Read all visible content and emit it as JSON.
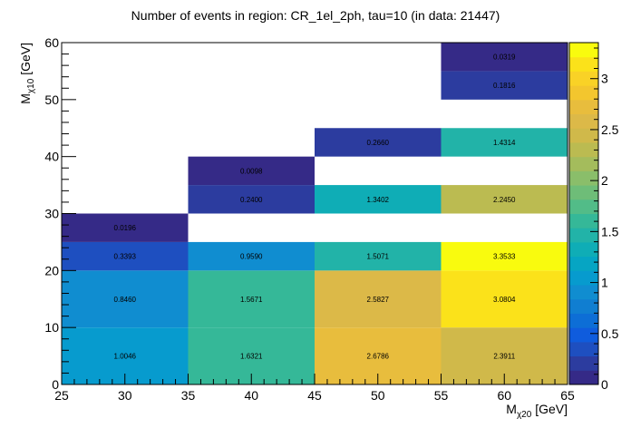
{
  "chart_data": {
    "type": "heatmap",
    "title": "Number of events in region: CR_1el_2ph, tau=10 (in data: 21447)",
    "xlabel": {
      "base": "M",
      "sub": "χ20",
      "unit": " [GeV]"
    },
    "ylabel": {
      "base": "M",
      "sub": "χ10",
      "unit": " [GeV]"
    },
    "xlim": [
      25,
      65
    ],
    "ylim": [
      0,
      60
    ],
    "xticks": [
      25,
      30,
      35,
      40,
      45,
      50,
      55,
      60,
      65
    ],
    "yticks": [
      0,
      10,
      20,
      30,
      40,
      50,
      60
    ],
    "zlim": [
      0,
      3.3533
    ],
    "zticks": [
      0,
      0.5,
      1,
      1.5,
      2,
      2.5,
      3
    ],
    "cells": [
      {
        "x": [
          25,
          35
        ],
        "y": [
          0,
          10
        ],
        "value": 1.0046,
        "label": "1.0046"
      },
      {
        "x": [
          35,
          45
        ],
        "y": [
          0,
          10
        ],
        "value": 1.6321,
        "label": "1.6321"
      },
      {
        "x": [
          45,
          55
        ],
        "y": [
          0,
          10
        ],
        "value": 2.6786,
        "label": "2.6786"
      },
      {
        "x": [
          55,
          65
        ],
        "y": [
          0,
          10
        ],
        "value": 2.3911,
        "label": "2.3911"
      },
      {
        "x": [
          25,
          35
        ],
        "y": [
          10,
          20
        ],
        "value": 0.846,
        "label": "0.8460"
      },
      {
        "x": [
          35,
          45
        ],
        "y": [
          10,
          20
        ],
        "value": 1.5671,
        "label": "1.5671"
      },
      {
        "x": [
          45,
          55
        ],
        "y": [
          10,
          20
        ],
        "value": 2.5827,
        "label": "2.5827"
      },
      {
        "x": [
          55,
          65
        ],
        "y": [
          10,
          20
        ],
        "value": 3.0804,
        "label": "3.0804"
      },
      {
        "x": [
          25,
          35
        ],
        "y": [
          20,
          25
        ],
        "value": 0.3393,
        "label": "0.3393"
      },
      {
        "x": [
          35,
          45
        ],
        "y": [
          20,
          25
        ],
        "value": 0.959,
        "label": "0.9590"
      },
      {
        "x": [
          45,
          55
        ],
        "y": [
          20,
          25
        ],
        "value": 1.5071,
        "label": "1.5071"
      },
      {
        "x": [
          55,
          65
        ],
        "y": [
          20,
          25
        ],
        "value": 3.3533,
        "label": "3.3533"
      },
      {
        "x": [
          25,
          35
        ],
        "y": [
          25,
          30
        ],
        "value": 0.0196,
        "label": "0.0196"
      },
      {
        "x": [
          35,
          45
        ],
        "y": [
          30,
          35
        ],
        "value": 0.24,
        "label": "0.2400"
      },
      {
        "x": [
          45,
          55
        ],
        "y": [
          30,
          35
        ],
        "value": 1.3402,
        "label": "1.3402"
      },
      {
        "x": [
          55,
          65
        ],
        "y": [
          30,
          35
        ],
        "value": 2.245,
        "label": "2.2450"
      },
      {
        "x": [
          35,
          45
        ],
        "y": [
          35,
          40
        ],
        "value": 0.0098,
        "label": "0.0098"
      },
      {
        "x": [
          45,
          55
        ],
        "y": [
          40,
          45
        ],
        "value": 0.266,
        "label": "0.2660"
      },
      {
        "x": [
          55,
          65
        ],
        "y": [
          40,
          45
        ],
        "value": 1.4314,
        "label": "1.4314"
      },
      {
        "x": [
          55,
          65
        ],
        "y": [
          50,
          55
        ],
        "value": 0.1816,
        "label": "0.1816"
      },
      {
        "x": [
          55,
          65
        ],
        "y": [
          55,
          60
        ],
        "value": 0.0319,
        "label": "0.0319"
      }
    ],
    "palette": [
      "#352a87",
      "#2c3c9f",
      "#1e4fc0",
      "#0f5cdd",
      "#0d6ed6",
      "#107ed1",
      "#108dd0",
      "#079bce",
      "#06a5c3",
      "#0fadb6",
      "#22b3a8",
      "#35b898",
      "#52bc88",
      "#6ebd78",
      "#8abe6a",
      "#a4bc5c",
      "#bbbb51",
      "#d0b94a",
      "#dcb948",
      "#e8bd3d",
      "#f3c62e",
      "#f9d226",
      "#fbe21a",
      "#f9fb0e"
    ],
    "grid": false
  }
}
